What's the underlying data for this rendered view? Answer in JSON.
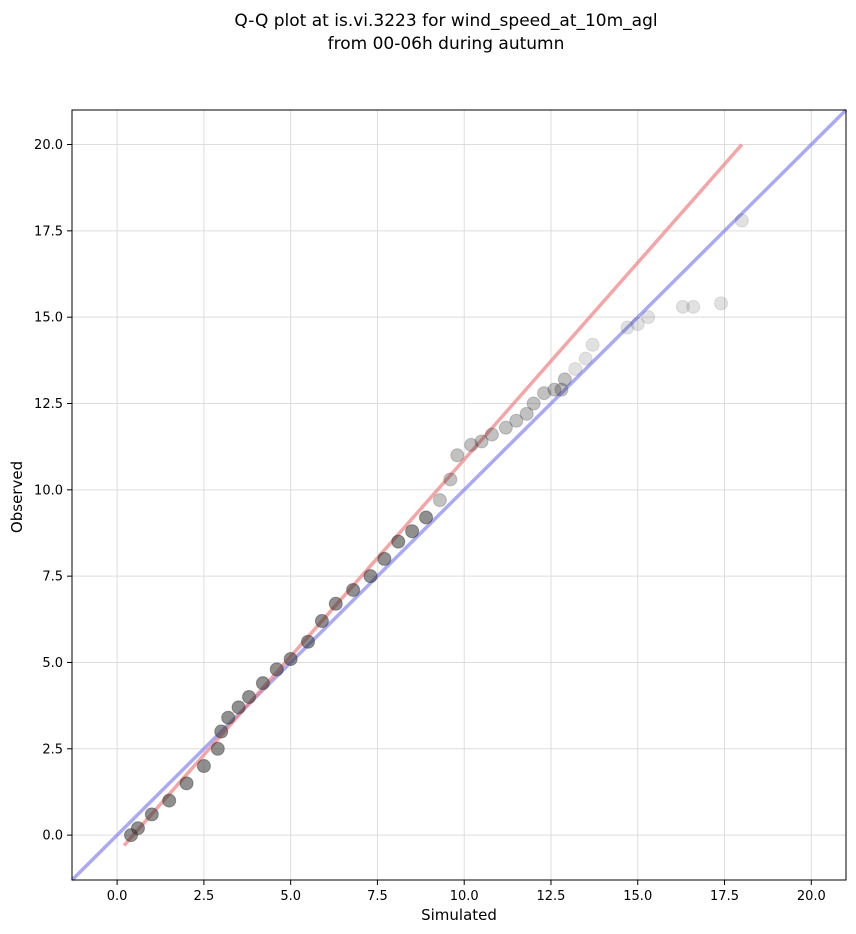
{
  "chart_data": {
    "type": "scatter",
    "title": [
      "Q-Q plot at is.vi.3223 for wind_speed_at_10m_agl",
      "from 00-06h during autumn"
    ],
    "xlabel": "Simulated",
    "ylabel": "Observed",
    "xlim": [
      -1.3,
      21.0
    ],
    "ylim": [
      -1.3,
      21.0
    ],
    "xticks": [
      0.0,
      2.5,
      5.0,
      7.5,
      10.0,
      12.5,
      15.0,
      17.5,
      20.0
    ],
    "yticks": [
      0.0,
      2.5,
      5.0,
      7.5,
      10.0,
      12.5,
      15.0,
      17.5,
      20.0
    ],
    "tick_labels": [
      "0.0",
      "2.5",
      "5.0",
      "7.5",
      "10.0",
      "12.5",
      "15.0",
      "17.5",
      "20.0"
    ],
    "grid": true,
    "colors": {
      "points": "#333333",
      "fit_line": "#f08080",
      "identity_line": "#7b7bf0"
    },
    "fit_line": {
      "x": [
        0.2,
        18.0
      ],
      "y": [
        -0.3,
        20.0
      ]
    },
    "identity_line": {
      "x": [
        -1.3,
        21.0
      ],
      "y": [
        -1.3,
        21.0
      ]
    },
    "series": [
      {
        "x": [
          0.4,
          0.6,
          1.0,
          1.5,
          2.0,
          2.5,
          2.9,
          3.0,
          3.2,
          3.5,
          3.8,
          4.2,
          4.6,
          5.0,
          5.5,
          5.9,
          6.3,
          6.8,
          7.3,
          7.7,
          8.1,
          8.5,
          8.9,
          9.3,
          9.6,
          9.8,
          10.2,
          10.5,
          10.8,
          11.2,
          11.5,
          11.8,
          12.0,
          12.3,
          12.6,
          12.8,
          12.9,
          13.2,
          13.5,
          13.7,
          14.7,
          15.0,
          15.3,
          16.3,
          16.6,
          17.4,
          18.0
        ],
        "y": [
          0.0,
          0.2,
          0.6,
          1.0,
          1.5,
          2.0,
          2.5,
          3.0,
          3.4,
          3.7,
          4.0,
          4.4,
          4.8,
          5.1,
          5.6,
          6.2,
          6.7,
          7.1,
          7.5,
          8.0,
          8.5,
          8.8,
          9.2,
          9.7,
          10.3,
          11.0,
          11.3,
          11.4,
          11.6,
          11.8,
          12.0,
          12.2,
          12.5,
          12.8,
          12.9,
          12.9,
          13.2,
          13.5,
          13.8,
          14.2,
          14.7,
          14.8,
          15.0,
          15.3,
          15.3,
          15.4,
          17.8
        ]
      }
    ]
  }
}
